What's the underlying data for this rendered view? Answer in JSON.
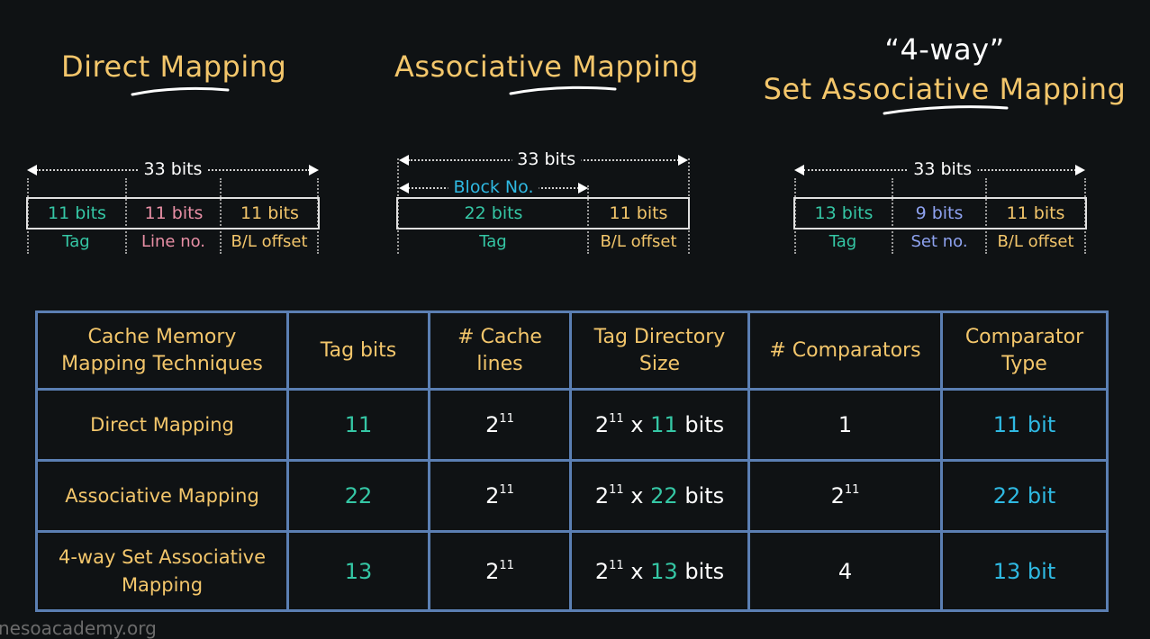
{
  "titles": {
    "direct": "Direct Mapping",
    "associative": "Associative Mapping",
    "setassoc_line1": "“4-way”",
    "setassoc_line2": "Set Associative Mapping"
  },
  "direct": {
    "total": "33 bits",
    "fields": [
      {
        "bits": "11 bits",
        "label": "Tag"
      },
      {
        "bits": "11 bits",
        "label": "Line no."
      },
      {
        "bits": "11 bits",
        "label": "B/L offset"
      }
    ]
  },
  "associative": {
    "total": "33 bits",
    "block_label": "Block No.",
    "fields": [
      {
        "bits": "22 bits",
        "label": "Tag"
      },
      {
        "bits": "11 bits",
        "label": "B/L offset"
      }
    ]
  },
  "setassoc": {
    "total": "33 bits",
    "fields": [
      {
        "bits": "13 bits",
        "label": "Tag"
      },
      {
        "bits": "9 bits",
        "label": "Set no."
      },
      {
        "bits": "11 bits",
        "label": "B/L offset"
      }
    ]
  },
  "table": {
    "headers": {
      "technique_l1": "Cache Memory",
      "technique_l2": "Mapping Techniques",
      "tag_bits": "Tag bits",
      "lines_l1": "# Cache",
      "lines_l2": "lines",
      "dir_l1": "Tag Directory",
      "dir_l2": "Size",
      "comparators": "# Comparators",
      "ctype_l1": "Comparator",
      "ctype_l2": "Type"
    },
    "rows": [
      {
        "technique_l1": "Direct Mapping",
        "technique_l2": "",
        "tag_bits": "11",
        "lines_base": "2",
        "lines_exp": "11",
        "dir_base": "2",
        "dir_exp": "11",
        "dir_x": "x",
        "dir_num": "11",
        "dir_unit": "bits",
        "comp_base": "1",
        "comp_exp": "",
        "ctype": "11 bit"
      },
      {
        "technique_l1": "Associative Mapping",
        "technique_l2": "",
        "tag_bits": "22",
        "lines_base": "2",
        "lines_exp": "11",
        "dir_base": "2",
        "dir_exp": "11",
        "dir_x": "x",
        "dir_num": "22",
        "dir_unit": "bits",
        "comp_base": "2",
        "comp_exp": "11",
        "ctype": "22 bit"
      },
      {
        "technique_l1": "4-way Set Associative",
        "technique_l2": "Mapping",
        "tag_bits": "13",
        "lines_base": "2",
        "lines_exp": "11",
        "dir_base": "2",
        "dir_exp": "11",
        "dir_x": "x",
        "dir_num": "13",
        "dir_unit": "bits",
        "comp_base": "4",
        "comp_exp": "",
        "ctype": "13 bit"
      }
    ]
  },
  "footer": "nesoacademy.org",
  "colors": {
    "title": "#f3c66b",
    "teal": "#35c7a5",
    "pink": "#e88fa5",
    "blue": "#8ea2f0",
    "cyan": "#2fb9e2",
    "table_border": "#5b7fb3",
    "background": "#0f1214"
  }
}
